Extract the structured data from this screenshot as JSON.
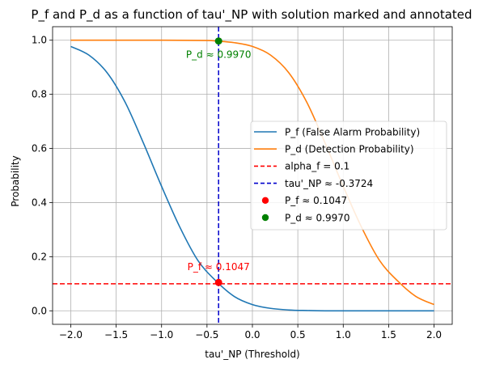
{
  "chart_data": {
    "type": "line",
    "title": "P_f and P_d as a function of tau'_NP with solution marked and annotated",
    "xlabel": "tau'_NP (Threshold)",
    "ylabel": "Probability",
    "xlim": [
      -2.2,
      2.2
    ],
    "ylim": [
      -0.05,
      1.05
    ],
    "xticks": [
      -2.0,
      -1.5,
      -1.0,
      -0.5,
      0.0,
      0.5,
      1.0,
      1.5,
      2.0
    ],
    "xtick_labels": [
      "−2.0",
      "−1.5",
      "−1.0",
      "−0.5",
      "0.0",
      "0.5",
      "1.0",
      "1.5",
      "2.0"
    ],
    "yticks": [
      0.0,
      0.2,
      0.4,
      0.6,
      0.8,
      1.0
    ],
    "ytick_labels": [
      "0.0",
      "0.2",
      "0.4",
      "0.6",
      "0.8",
      "1.0"
    ],
    "grid": true,
    "legend_position": "center-right",
    "series": [
      {
        "name": "P_f (False Alarm Probability)",
        "color": "#1f77b4",
        "x": [
          -2.0,
          -1.8,
          -1.6,
          -1.4,
          -1.2,
          -1.0,
          -0.8,
          -0.6,
          -0.4,
          -0.2,
          0.0,
          0.2,
          0.4,
          0.6,
          0.8,
          1.0,
          1.5,
          2.0
        ],
        "y": [
          0.977,
          0.945,
          0.88,
          0.77,
          0.62,
          0.46,
          0.31,
          0.186,
          0.11,
          0.053,
          0.023,
          0.009,
          0.003,
          0.001,
          0.0,
          0.0,
          0.0,
          0.0
        ]
      },
      {
        "name": "P_d (Detection Probability)",
        "color": "#ff7f0e",
        "x": [
          -2.0,
          -1.5,
          -1.0,
          -0.5,
          -0.4,
          -0.2,
          0.0,
          0.2,
          0.4,
          0.6,
          0.8,
          1.0,
          1.2,
          1.4,
          1.6,
          1.8,
          2.0
        ],
        "y": [
          1.0,
          1.0,
          1.0,
          0.999,
          0.997,
          0.991,
          0.977,
          0.945,
          0.88,
          0.77,
          0.62,
          0.46,
          0.31,
          0.186,
          0.11,
          0.053,
          0.023
        ]
      }
    ],
    "reference_lines": [
      {
        "name": "alpha_f = 0.1",
        "orientation": "horizontal",
        "value": 0.1,
        "color": "#ff0000",
        "style": "dashed"
      },
      {
        "name": "tau'_NP ≈ -0.3724",
        "orientation": "vertical",
        "value": -0.3724,
        "color": "#0000cc",
        "style": "dashed"
      }
    ],
    "points": [
      {
        "name": "P_f ≈ 0.1047",
        "x": -0.3724,
        "y": 0.1047,
        "color": "#ff0000",
        "annotation": "P_f ≈ 0.1047"
      },
      {
        "name": "P_d ≈ 0.9970",
        "x": -0.3724,
        "y": 0.997,
        "color": "#008000",
        "annotation": "P_d ≈ 0.9970"
      }
    ]
  }
}
